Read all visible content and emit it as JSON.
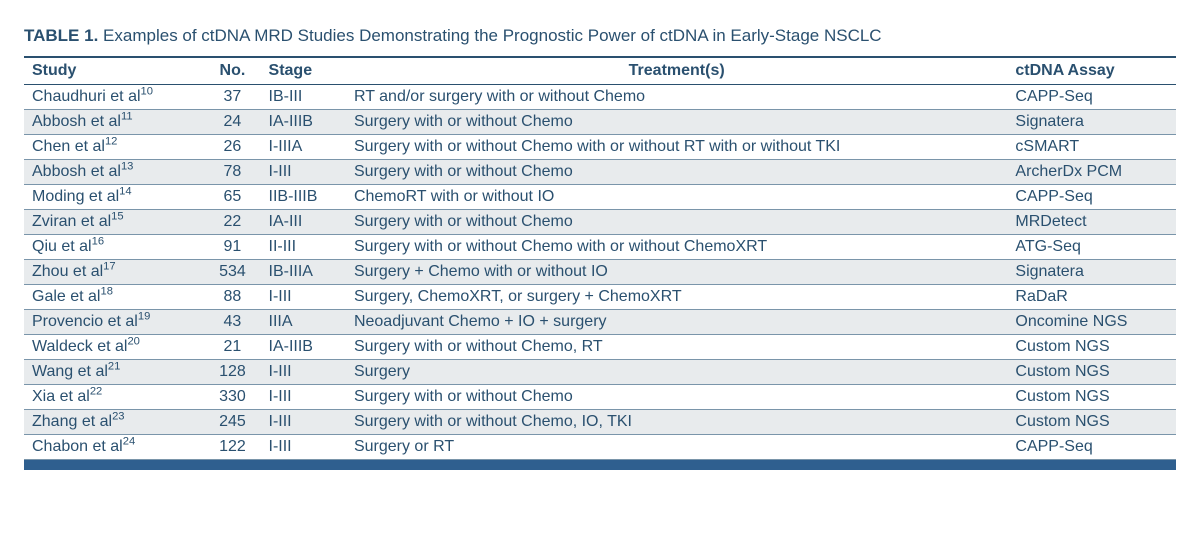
{
  "table": {
    "label": "TABLE 1.",
    "caption": "Examples of ctDNA MRD Studies Demonstrating the Prognostic Power of ctDNA in Early-Stage NSCLC",
    "columns": [
      "Study",
      "No.",
      "Stage",
      "Treatment(s)",
      "ctDNA Assay"
    ],
    "rows": [
      {
        "study": "Chaudhuri et al",
        "ref": "10",
        "no": "37",
        "stage": "IB-III",
        "treatment": "RT and/or surgery with or without Chemo",
        "assay": "CAPP-Seq"
      },
      {
        "study": "Abbosh et al",
        "ref": "11",
        "no": "24",
        "stage": "IA-IIIB",
        "treatment": "Surgery with or without Chemo",
        "assay": "Signatera"
      },
      {
        "study": "Chen et al",
        "ref": "12",
        "no": "26",
        "stage": "I-IIIA",
        "treatment": "Surgery with or without Chemo with or without RT with or without TKI",
        "assay": "cSMART"
      },
      {
        "study": "Abbosh et al",
        "ref": "13",
        "no": "78",
        "stage": "I-III",
        "treatment": "Surgery with or without Chemo",
        "assay": "ArcherDx PCM"
      },
      {
        "study": "Moding et al",
        "ref": "14",
        "no": "65",
        "stage": "IIB-IIIB",
        "treatment": "ChemoRT with or without IO",
        "assay": "CAPP-Seq"
      },
      {
        "study": "Zviran et al",
        "ref": "15",
        "no": "22",
        "stage": "IA-III",
        "treatment": "Surgery with or without Chemo",
        "assay": "MRDetect"
      },
      {
        "study": "Qiu et al",
        "ref": "16",
        "no": "91",
        "stage": "II-III",
        "treatment": "Surgery with or without Chemo with or without ChemoXRT",
        "assay": "ATG-Seq"
      },
      {
        "study": "Zhou et al",
        "ref": "17",
        "no": "534",
        "stage": "IB-IIIA",
        "treatment": "Surgery + Chemo with or without IO",
        "assay": "Signatera"
      },
      {
        "study": "Gale et al",
        "ref": "18",
        "no": "88",
        "stage": "I-III",
        "treatment": "Surgery, ChemoXRT, or surgery + ChemoXRT",
        "assay": "RaDaR"
      },
      {
        "study": "Provencio et al",
        "ref": "19",
        "no": "43",
        "stage": "IIIA",
        "treatment": "Neoadjuvant Chemo + IO + surgery",
        "assay": "Oncomine NGS"
      },
      {
        "study": "Waldeck et al",
        "ref": "20",
        "no": "21",
        "stage": "IA-IIIB",
        "treatment": "Surgery with or without Chemo, RT",
        "assay": "Custom NGS"
      },
      {
        "study": "Wang et al",
        "ref": "21",
        "no": "128",
        "stage": "I-III",
        "treatment": "Surgery",
        "assay": "Custom NGS"
      },
      {
        "study": "Xia et al",
        "ref": "22",
        "no": "330",
        "stage": "I-III",
        "treatment": "Surgery with or without Chemo",
        "assay": "Custom NGS"
      },
      {
        "study": "Zhang et al",
        "ref": "23",
        "no": "245",
        "stage": "I-III",
        "treatment": "Surgery with or without Chemo, IO, TKI",
        "assay": "Custom NGS"
      },
      {
        "study": "Chabon et al",
        "ref": "24",
        "no": "122",
        "stage": "I-III",
        "treatment": "Surgery or RT",
        "assay": "CAPP-Seq"
      }
    ],
    "colors": {
      "text": "#2a506f",
      "rule": "#2a506f",
      "row_border": "#7a95aa",
      "odd_bg": "#ffffff",
      "even_bg": "#e8ebed",
      "footer_bar": "#2f5f8f"
    }
  }
}
